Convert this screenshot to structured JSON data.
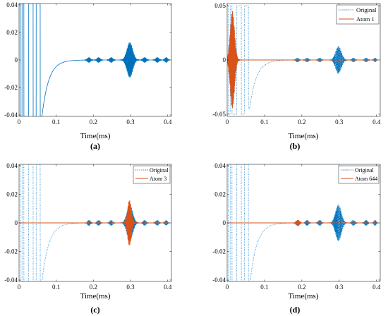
{
  "figure": {
    "panels": [
      "(a)",
      "(b)",
      "(c)",
      "(d)"
    ]
  },
  "colors": {
    "original": "#0072BD",
    "atom": "#D95319",
    "axis": "#262626"
  },
  "chart_data": [
    {
      "type": "line",
      "panel": "(a)",
      "xlabel": "Time(ms)",
      "ylabel": "",
      "xlim": [
        0,
        0.41
      ],
      "ylim": [
        -0.041,
        0.041
      ],
      "xticks": [
        "0",
        "0.1",
        "0.2",
        "0.3",
        "0.4"
      ],
      "yticks": [
        "-0.04",
        "-0.02",
        "0",
        "0.02",
        "0.04"
      ],
      "grid": false,
      "legend": "none",
      "series": [
        {
          "name": "",
          "style": "solid",
          "color": "#0072BD",
          "components": {
            "square_wave_end": 0.057,
            "decay_start": 0.06,
            "decay_amp": -0.045,
            "decay_tau": 0.018,
            "bursts": [
              {
                "center": 0.188,
                "width": 0.006,
                "amp": 0.002
              },
              {
                "center": 0.214,
                "width": 0.006,
                "amp": 0.002
              },
              {
                "center": 0.248,
                "width": 0.006,
                "amp": 0.002
              },
              {
                "center": 0.298,
                "width": 0.011,
                "amp": 0.013
              },
              {
                "center": 0.338,
                "width": 0.006,
                "amp": 0.002
              },
              {
                "center": 0.372,
                "width": 0.006,
                "amp": 0.002
              },
              {
                "center": 0.396,
                "width": 0.005,
                "amp": 0.002
              }
            ]
          }
        }
      ]
    },
    {
      "type": "line",
      "panel": "(b)",
      "xlabel": "Time(ms)",
      "ylabel": "",
      "xlim": [
        0,
        0.41
      ],
      "ylim": [
        -0.052,
        0.052
      ],
      "xticks": [
        "0",
        "0.1",
        "0.2",
        "0.3",
        "0.4"
      ],
      "yticks": [
        "-0.05",
        "0",
        "0.05"
      ],
      "grid": false,
      "legend": "top-right",
      "series": [
        {
          "name": "Original",
          "style": "dotted",
          "color": "#0072BD"
        },
        {
          "name": "Atom 1",
          "style": "solid",
          "color": "#D95319",
          "components": {
            "burst": {
              "center": 0.014,
              "width": 0.008,
              "amp": 0.045
            }
          }
        }
      ]
    },
    {
      "type": "line",
      "panel": "(c)",
      "xlabel": "Time(ms)",
      "ylabel": "",
      "xlim": [
        0,
        0.41
      ],
      "ylim": [
        -0.041,
        0.041
      ],
      "xticks": [
        "0",
        "0.1",
        "0.2",
        "0.3",
        "0.4"
      ],
      "yticks": [
        "-0.04",
        "-0.02",
        "0",
        "0.02",
        "0.04"
      ],
      "grid": false,
      "legend": "top-right",
      "series": [
        {
          "name": "Original",
          "style": "dotted",
          "color": "#0072BD"
        },
        {
          "name": "Atom 3",
          "style": "solid",
          "color": "#D95319",
          "components": {
            "burst": {
              "center": 0.297,
              "width": 0.007,
              "amp": 0.016
            }
          }
        }
      ]
    },
    {
      "type": "line",
      "panel": "(d)",
      "xlabel": "Time(ms)",
      "ylabel": "",
      "xlim": [
        0,
        0.41
      ],
      "ylim": [
        -0.041,
        0.041
      ],
      "xticks": [
        "0",
        "0.1",
        "0.2",
        "0.3",
        "0.4"
      ],
      "yticks": [
        "-0.04",
        "-0.02",
        "0",
        "0.02",
        "0.04"
      ],
      "grid": false,
      "legend": "top-right",
      "series": [
        {
          "name": "Original",
          "style": "dotted",
          "color": "#0072BD"
        },
        {
          "name": "Atom 644",
          "style": "solid",
          "color": "#D95319",
          "components": {
            "burst": {
              "center": 0.19,
              "width": 0.005,
              "amp": 0.0022
            }
          }
        }
      ]
    }
  ]
}
